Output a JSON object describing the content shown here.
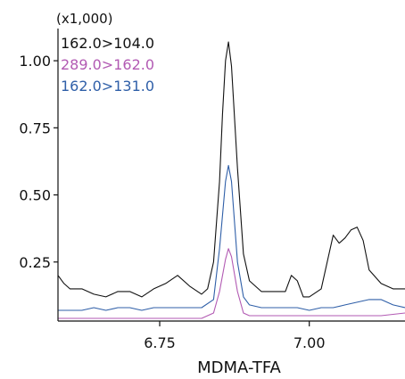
{
  "chart_data": {
    "type": "line",
    "title": "",
    "xlabel": "MDMA-TFA",
    "ylabel": "",
    "y_scale_label": "(x1,000)",
    "xlim": [
      6.58,
      7.16
    ],
    "ylim": [
      0.03,
      1.12
    ],
    "x_ticks": [
      6.75,
      7.0
    ],
    "x_tick_labels": [
      "6.75",
      "7.00"
    ],
    "y_ticks": [
      0.25,
      0.5,
      0.75,
      1.0
    ],
    "y_tick_labels": [
      "0.25",
      "0.50",
      "0.75",
      "1.00"
    ],
    "grid": false,
    "legend_position": "top-left",
    "series": [
      {
        "name": "162.0>104.0",
        "color": "#111111",
        "x": [
          6.58,
          6.59,
          6.6,
          6.62,
          6.64,
          6.66,
          6.68,
          6.7,
          6.72,
          6.74,
          6.76,
          6.78,
          6.8,
          6.82,
          6.83,
          6.84,
          6.85,
          6.855,
          6.86,
          6.865,
          6.87,
          6.88,
          6.89,
          6.9,
          6.91,
          6.92,
          6.94,
          6.96,
          6.97,
          6.98,
          6.99,
          7.0,
          7.02,
          7.03,
          7.04,
          7.05,
          7.06,
          7.07,
          7.08,
          7.09,
          7.1,
          7.12,
          7.14,
          7.16
        ],
        "y": [
          0.2,
          0.17,
          0.15,
          0.15,
          0.13,
          0.12,
          0.14,
          0.14,
          0.12,
          0.15,
          0.17,
          0.2,
          0.16,
          0.13,
          0.15,
          0.25,
          0.55,
          0.8,
          1.0,
          1.07,
          0.98,
          0.6,
          0.28,
          0.18,
          0.16,
          0.14,
          0.14,
          0.14,
          0.2,
          0.18,
          0.12,
          0.12,
          0.15,
          0.25,
          0.35,
          0.32,
          0.34,
          0.37,
          0.38,
          0.33,
          0.22,
          0.17,
          0.15,
          0.15
        ]
      },
      {
        "name": "289.0>162.0",
        "color": "#b25ab3",
        "x": [
          6.58,
          6.6,
          6.64,
          6.68,
          6.72,
          6.76,
          6.8,
          6.82,
          6.84,
          6.85,
          6.86,
          6.865,
          6.87,
          6.88,
          6.89,
          6.9,
          6.92,
          6.96,
          7.0,
          7.04,
          7.08,
          7.12,
          7.16
        ],
        "y": [
          0.04,
          0.04,
          0.04,
          0.04,
          0.04,
          0.04,
          0.04,
          0.04,
          0.06,
          0.14,
          0.26,
          0.3,
          0.27,
          0.14,
          0.06,
          0.05,
          0.05,
          0.05,
          0.05,
          0.05,
          0.05,
          0.05,
          0.06
        ]
      },
      {
        "name": "162.0>131.0",
        "color": "#2f5fa8",
        "x": [
          6.58,
          6.6,
          6.62,
          6.64,
          6.66,
          6.68,
          6.7,
          6.72,
          6.74,
          6.76,
          6.78,
          6.8,
          6.82,
          6.84,
          6.85,
          6.86,
          6.865,
          6.87,
          6.88,
          6.89,
          6.9,
          6.92,
          6.94,
          6.96,
          6.98,
          7.0,
          7.02,
          7.04,
          7.06,
          7.08,
          7.1,
          7.12,
          7.14,
          7.16
        ],
        "y": [
          0.07,
          0.07,
          0.07,
          0.08,
          0.07,
          0.08,
          0.08,
          0.07,
          0.08,
          0.08,
          0.08,
          0.08,
          0.08,
          0.11,
          0.3,
          0.55,
          0.61,
          0.55,
          0.25,
          0.12,
          0.09,
          0.08,
          0.08,
          0.08,
          0.08,
          0.07,
          0.08,
          0.08,
          0.09,
          0.1,
          0.11,
          0.11,
          0.09,
          0.08
        ]
      }
    ]
  }
}
